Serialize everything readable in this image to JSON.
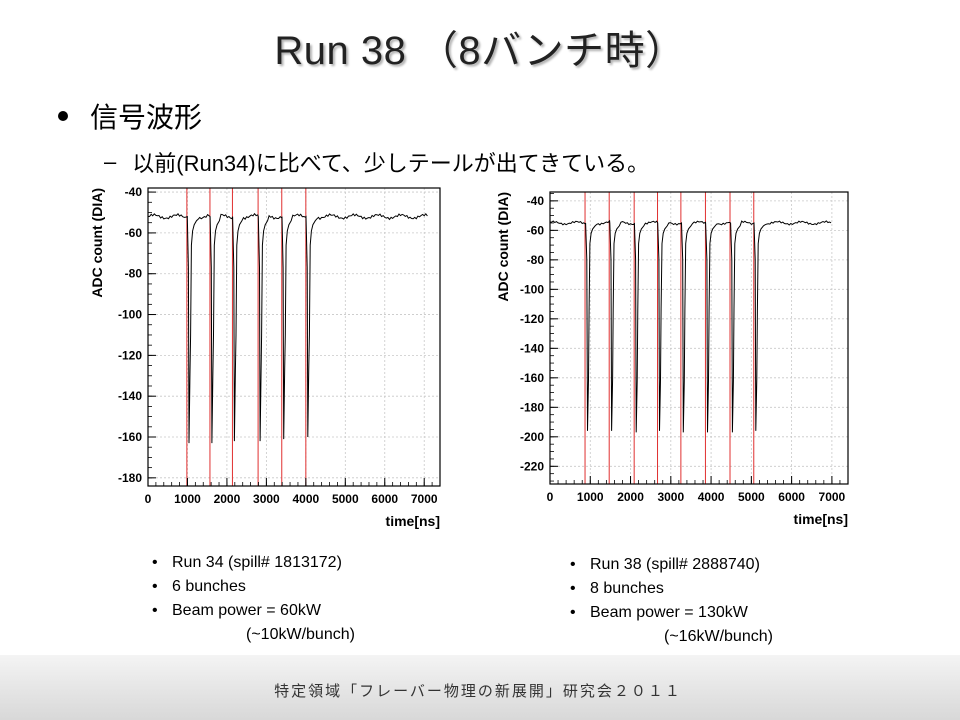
{
  "slide": {
    "title": "Run 38 （8バンチ時）",
    "bullet1": "信号波形",
    "bullet2_dash": "–",
    "bullet2": "以前(Run34)に比べて、少しテールが出てきている。"
  },
  "info_left": {
    "line1": "Run 34 (spill# 1813172)",
    "line2": "6 bunches",
    "line3": "Beam power = 60kW",
    "line4": "(~10kW/bunch)"
  },
  "info_right": {
    "line1": "Run 38 (spill# 2888740)",
    "line2": "8 bunches",
    "line3": "Beam power = 130kW",
    "line4": "(~16kW/bunch)"
  },
  "footer": {
    "text": "特定領域「フレーバー物理の新展開」研究会２０１１"
  },
  "chart_data": [
    {
      "type": "line",
      "xlabel": "time[ns]",
      "ylabel": "ADC count (DIA)",
      "xlim": [
        0,
        7400
      ],
      "ylim": [
        -184,
        -38
      ],
      "xticks": [
        0,
        1000,
        2000,
        3000,
        4000,
        5000,
        6000,
        7000
      ],
      "yticks": [
        -40,
        -60,
        -80,
        -100,
        -120,
        -140,
        -160,
        -180
      ],
      "grid": true,
      "colors": {
        "waveform": "#000000",
        "marker": "#e03030",
        "grid": "#c8c8c8"
      },
      "baseline": -52,
      "bunch_markers": [
        985,
        1570,
        2140,
        2790,
        3390,
        4000
      ],
      "dips": [
        {
          "t": 1040,
          "min": -163
        },
        {
          "t": 1620,
          "min": -163
        },
        {
          "t": 2190,
          "min": -162
        },
        {
          "t": 2840,
          "min": -162
        },
        {
          "t": 3440,
          "min": -161
        },
        {
          "t": 4050,
          "min": -160
        }
      ],
      "x_start": 0,
      "x_end": 7100
    },
    {
      "type": "line",
      "xlabel": "time[ns]",
      "ylabel": "ADC count (DIA)",
      "xlim": [
        0,
        7400
      ],
      "ylim": [
        -232,
        -34
      ],
      "xticks": [
        0,
        1000,
        2000,
        3000,
        4000,
        5000,
        6000,
        7000
      ],
      "yticks": [
        -40,
        -60,
        -80,
        -100,
        -120,
        -140,
        -160,
        -180,
        -200,
        -220
      ],
      "grid": true,
      "colors": {
        "waveform": "#000000",
        "marker": "#e03030",
        "grid": "#c8c8c8"
      },
      "baseline": -55,
      "bunch_markers": [
        870,
        1470,
        2090,
        2670,
        3250,
        3860,
        4470,
        5060
      ],
      "dips": [
        {
          "t": 930,
          "min": -196
        },
        {
          "t": 1530,
          "min": -196
        },
        {
          "t": 2140,
          "min": -197
        },
        {
          "t": 2720,
          "min": -196
        },
        {
          "t": 3310,
          "min": -197
        },
        {
          "t": 3910,
          "min": -197
        },
        {
          "t": 4530,
          "min": -197
        },
        {
          "t": 5110,
          "min": -196
        }
      ],
      "x_start": 0,
      "x_end": 7000
    }
  ]
}
